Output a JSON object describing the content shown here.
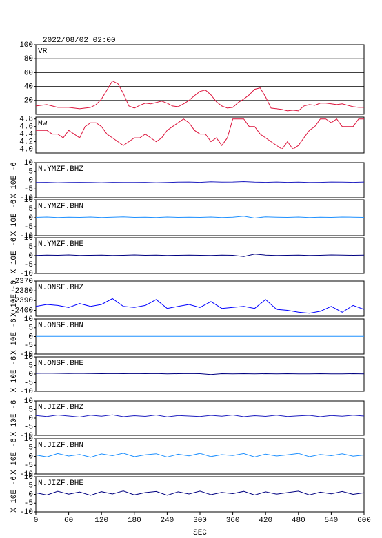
{
  "chart_data": [
    {
      "type": "line",
      "title": "2022/08/02 02:00",
      "xlim": [
        0,
        600
      ],
      "ylim": [
        0,
        100
      ],
      "yticks": [
        20,
        40,
        60,
        80,
        100
      ],
      "grid": true,
      "x": [
        0,
        10,
        20,
        30,
        40,
        50,
        60,
        70,
        80,
        90,
        100,
        110,
        120,
        130,
        140,
        150,
        160,
        170,
        180,
        190,
        200,
        210,
        220,
        230,
        240,
        250,
        260,
        270,
        280,
        290,
        300,
        310,
        320,
        330,
        340,
        350,
        360,
        370,
        380,
        390,
        400,
        410,
        420,
        430,
        440,
        450,
        460,
        470,
        480,
        490,
        500,
        510,
        520,
        530,
        540,
        550,
        560,
        570,
        580,
        590,
        600
      ],
      "series": [
        {
          "name": "VR",
          "color": "#dc143c",
          "values": [
            12,
            13,
            14,
            12,
            10,
            10,
            10,
            9,
            8,
            9,
            10,
            14,
            22,
            35,
            48,
            44,
            30,
            12,
            9,
            13,
            16,
            15,
            17,
            19,
            16,
            12,
            11,
            15,
            20,
            27,
            33,
            35,
            28,
            18,
            12,
            9,
            10,
            17,
            22,
            28,
            36,
            38,
            25,
            9,
            8,
            7,
            5,
            6,
            5,
            12,
            14,
            13,
            16,
            16,
            15,
            14,
            15,
            13,
            11,
            10,
            10
          ]
        }
      ]
    },
    {
      "type": "line",
      "xlim": [
        0,
        600
      ],
      "ylim": [
        3.9,
        4.85
      ],
      "yticks": [
        {
          "value": 4,
          "label": "4.0"
        },
        4.2,
        4.4,
        4.6,
        4.8
      ],
      "grid": false,
      "x": [
        0,
        10,
        20,
        30,
        40,
        50,
        60,
        70,
        80,
        90,
        100,
        110,
        120,
        130,
        140,
        150,
        160,
        170,
        180,
        190,
        200,
        210,
        220,
        230,
        240,
        250,
        260,
        270,
        280,
        290,
        300,
        310,
        320,
        330,
        340,
        350,
        360,
        370,
        380,
        390,
        400,
        410,
        420,
        430,
        440,
        450,
        460,
        470,
        480,
        490,
        500,
        510,
        520,
        530,
        540,
        550,
        560,
        570,
        580,
        590,
        600
      ],
      "series": [
        {
          "name": "Mw",
          "color": "#dc143c",
          "values": [
            4.5,
            4.5,
            4.5,
            4.4,
            4.4,
            4.3,
            4.5,
            4.4,
            4.3,
            4.6,
            4.7,
            4.7,
            4.6,
            4.4,
            4.3,
            4.2,
            4.1,
            4.2,
            4.3,
            4.3,
            4.4,
            4.3,
            4.2,
            4.3,
            4.5,
            4.6,
            4.7,
            4.8,
            4.7,
            4.5,
            4.4,
            4.4,
            4.2,
            4.3,
            4.1,
            4.3,
            4.8,
            4.8,
            4.8,
            4.6,
            4.6,
            4.4,
            4.3,
            4.2,
            4.1,
            4.0,
            4.2,
            4.0,
            4.1,
            4.3,
            4.5,
            4.6,
            4.8,
            4.8,
            4.7,
            4.8,
            4.6,
            4.6,
            4.6,
            4.8,
            4.8
          ]
        }
      ]
    },
    {
      "type": "line",
      "y_label": "X 10E -6",
      "xlim": [
        0,
        600
      ],
      "ylim": [
        -10,
        10
      ],
      "yticks": [
        -10,
        -5,
        0,
        5,
        10
      ],
      "grid": false,
      "x": [
        0,
        20,
        40,
        60,
        80,
        100,
        120,
        140,
        160,
        180,
        200,
        220,
        240,
        260,
        280,
        300,
        320,
        340,
        360,
        380,
        400,
        420,
        440,
        460,
        480,
        500,
        520,
        540,
        560,
        580,
        600
      ],
      "series": [
        {
          "name": "N.YMZF.BHZ",
          "color": "#2020c0",
          "values": [
            -1.3,
            -1.2,
            -1.4,
            -1.3,
            -1.2,
            -1.3,
            -1.4,
            -1.2,
            -1.3,
            -1.3,
            -1.2,
            -1.4,
            -1.3,
            -1.1,
            -1.0,
            -1.2,
            -0.9,
            -1.1,
            -1.0,
            -0.8,
            -1.1,
            -1.2,
            -1.0,
            -1.2,
            -1.1,
            -1.3,
            -1.2,
            -1.0,
            -1.1,
            -1.2,
            -1.0
          ]
        }
      ]
    },
    {
      "type": "line",
      "y_label": "X 10E -6",
      "xlim": [
        0,
        600
      ],
      "ylim": [
        -10,
        10
      ],
      "yticks": [
        -10,
        -5,
        0,
        5,
        10
      ],
      "grid": false,
      "x": [
        0,
        20,
        40,
        60,
        80,
        100,
        120,
        140,
        160,
        180,
        200,
        220,
        240,
        260,
        280,
        300,
        320,
        340,
        360,
        380,
        400,
        420,
        440,
        460,
        480,
        500,
        520,
        540,
        560,
        580,
        600
      ],
      "series": [
        {
          "name": "N.YMZF.BHN",
          "color": "#1e90ff",
          "values": [
            0.2,
            0.4,
            0.1,
            0.3,
            0.2,
            0.4,
            0.1,
            0.3,
            0.5,
            0.2,
            0.3,
            0.1,
            0.4,
            0.2,
            0.3,
            0.2,
            0.4,
            0.1,
            0.3,
            0.9,
            -0.2,
            0.5,
            0.3,
            0.2,
            0.4,
            0.1,
            0.3,
            0.2,
            0.4,
            0.3,
            0.2
          ]
        }
      ]
    },
    {
      "type": "line",
      "y_label": "X 10E -6",
      "xlim": [
        0,
        600
      ],
      "ylim": [
        -10,
        10
      ],
      "yticks": [
        -10,
        -5,
        0,
        5,
        10
      ],
      "grid": false,
      "x": [
        0,
        20,
        40,
        60,
        80,
        100,
        120,
        140,
        160,
        180,
        200,
        220,
        240,
        260,
        280,
        300,
        320,
        340,
        360,
        380,
        400,
        420,
        440,
        460,
        480,
        500,
        520,
        540,
        560,
        580,
        600
      ],
      "series": [
        {
          "name": "N.YMZF.BHE",
          "color": "#000080",
          "values": [
            0.1,
            0.3,
            0.2,
            0.4,
            0.1,
            0.2,
            0.3,
            0.1,
            0.2,
            0.4,
            0.2,
            0.3,
            0.1,
            0.2,
            0.3,
            0.2,
            0.1,
            0.3,
            0.2,
            -0.5,
            0.9,
            0.3,
            0.1,
            0.2,
            0.3,
            0.1,
            0.2,
            0.4,
            0.3,
            0.2,
            0.3
          ]
        }
      ]
    },
    {
      "type": "line",
      "y_label": "X 10E -6",
      "xlim": [
        0,
        600
      ],
      "ylim": [
        -2406,
        -2370
      ],
      "yticks": [
        -2400,
        -2390,
        -2380,
        -2370
      ],
      "grid": false,
      "x": [
        0,
        20,
        40,
        60,
        80,
        100,
        120,
        140,
        160,
        180,
        200,
        220,
        240,
        260,
        280,
        300,
        320,
        340,
        360,
        380,
        400,
        420,
        440,
        460,
        480,
        500,
        520,
        540,
        560,
        580,
        600
      ],
      "series": [
        {
          "name": "N.ONSF.BHZ",
          "color": "#0000ff",
          "values": [
            -2396,
            -2394,
            -2395,
            -2397,
            -2393,
            -2396,
            -2394,
            -2388,
            -2396,
            -2397,
            -2395,
            -2389,
            -2398,
            -2396,
            -2394,
            -2397,
            -2391,
            -2398,
            -2397,
            -2396,
            -2398,
            -2389,
            -2399,
            -2400,
            -2402,
            -2403,
            -2401,
            -2396,
            -2402,
            -2395,
            -2399
          ]
        }
      ]
    },
    {
      "type": "line",
      "y_label": "X 10E -6",
      "xlim": [
        0,
        600
      ],
      "ylim": [
        -10,
        10
      ],
      "yticks": [
        -10,
        -5,
        0,
        5,
        10
      ],
      "grid": false,
      "x": [
        0,
        20,
        40,
        60,
        80,
        100,
        120,
        140,
        160,
        180,
        200,
        220,
        240,
        260,
        280,
        300,
        320,
        340,
        360,
        380,
        400,
        420,
        440,
        460,
        480,
        500,
        520,
        540,
        560,
        580,
        600
      ],
      "series": [
        {
          "name": "N.ONSF.BHN",
          "color": "#1e90ff",
          "values": [
            0.1,
            0.1,
            0.1,
            0.1,
            0.1,
            0.1,
            0.1,
            0.1,
            0.1,
            0.1,
            0.1,
            0.1,
            0.1,
            0.1,
            0.1,
            0.1,
            0.1,
            0.1,
            0.1,
            0.1,
            0.1,
            0.1,
            0.1,
            0.1,
            0.1,
            0.1,
            0.1,
            0.1,
            0.1,
            0.1,
            0.1
          ]
        }
      ]
    },
    {
      "type": "line",
      "y_label": "X 10E -6",
      "xlim": [
        0,
        600
      ],
      "ylim": [
        -10,
        10
      ],
      "yticks": [
        -10,
        -5,
        0,
        5,
        10
      ],
      "grid": false,
      "x": [
        0,
        20,
        40,
        60,
        80,
        100,
        120,
        140,
        160,
        180,
        200,
        220,
        240,
        260,
        280,
        300,
        320,
        340,
        360,
        380,
        400,
        420,
        440,
        460,
        480,
        500,
        520,
        540,
        560,
        580,
        600
      ],
      "series": [
        {
          "name": "N.ONSF.BHE",
          "color": "#000080",
          "values": [
            0.4,
            0.5,
            0.4,
            0.3,
            0.4,
            0.3,
            0.2,
            0.3,
            0.2,
            0.3,
            0.2,
            0.3,
            0.1,
            0.2,
            0.3,
            0.2,
            -0.3,
            0.2,
            0.1,
            0.2,
            0.1,
            0.2,
            0.1,
            0.2,
            0.1,
            0.1,
            0.2,
            0.1,
            0.1,
            0.2,
            0.1
          ]
        }
      ]
    },
    {
      "type": "line",
      "y_label": "X 10E -6",
      "xlim": [
        0,
        600
      ],
      "ylim": [
        -10,
        10
      ],
      "yticks": [
        -10,
        -5,
        0,
        5,
        10
      ],
      "grid": false,
      "x": [
        0,
        20,
        40,
        60,
        80,
        100,
        120,
        140,
        160,
        180,
        200,
        220,
        240,
        260,
        280,
        300,
        320,
        340,
        360,
        380,
        400,
        420,
        440,
        460,
        480,
        500,
        520,
        540,
        560,
        580,
        600
      ],
      "series": [
        {
          "name": "N.JIZF.BHZ",
          "color": "#2020c0",
          "values": [
            1.5,
            0.9,
            1.8,
            1.2,
            0.6,
            1.7,
            1.1,
            1.9,
            0.8,
            1.4,
            1.0,
            1.8,
            0.7,
            1.5,
            1.2,
            0.9,
            1.6,
            1.1,
            1.8,
            0.8,
            1.4,
            1.0,
            1.7,
            0.9,
            1.3,
            1.6,
            0.8,
            1.5,
            1.1,
            1.7,
            1.2
          ]
        }
      ]
    },
    {
      "type": "line",
      "y_label": "X 10E -6",
      "xlim": [
        0,
        600
      ],
      "ylim": [
        -10,
        10
      ],
      "yticks": [
        -10,
        -5,
        0,
        5,
        10
      ],
      "grid": false,
      "x": [
        0,
        20,
        40,
        60,
        80,
        100,
        120,
        140,
        160,
        180,
        200,
        220,
        240,
        260,
        280,
        300,
        320,
        340,
        360,
        380,
        400,
        420,
        440,
        460,
        480,
        500,
        520,
        540,
        560,
        580,
        600
      ],
      "series": [
        {
          "name": "N.JIZF.BHN",
          "color": "#1e90ff",
          "values": [
            0.8,
            -0.3,
            1.6,
            0.2,
            1.1,
            -0.5,
            1.4,
            0.4,
            1.8,
            -0.2,
            0.9,
            1.5,
            -0.4,
            1.2,
            0.3,
            1.7,
            -0.1,
            1.0,
            0.5,
            1.6,
            -0.3,
            1.3,
            0.2,
            0.9,
            1.7,
            -0.2,
            1.1,
            0.4,
            1.5,
            0.1,
            0.8
          ]
        }
      ]
    },
    {
      "type": "line",
      "y_label": "X 10E -6",
      "x_label": "SEC",
      "xlim": [
        0,
        600
      ],
      "xticks": [
        0,
        60,
        120,
        180,
        240,
        300,
        360,
        420,
        480,
        540,
        600
      ],
      "ylim": [
        -10,
        10
      ],
      "yticks": [
        -10,
        -5,
        0,
        5,
        10
      ],
      "grid": false,
      "x": [
        0,
        20,
        40,
        60,
        80,
        100,
        120,
        140,
        160,
        180,
        200,
        220,
        240,
        260,
        280,
        300,
        320,
        340,
        360,
        380,
        400,
        420,
        440,
        460,
        480,
        500,
        520,
        540,
        560,
        580,
        600
      ],
      "series": [
        {
          "name": "N.JIZF.BHE",
          "color": "#000080",
          "values": [
            0.9,
            -0.4,
            1.7,
            0.1,
            1.3,
            -0.6,
            1.5,
            0.2,
            1.9,
            -0.3,
            1.0,
            1.6,
            -0.5,
            1.4,
            0.2,
            1.8,
            -0.2,
            1.1,
            0.4,
            1.7,
            -0.4,
            1.4,
            0.1,
            1.0,
            1.8,
            -0.3,
            1.2,
            0.3,
            1.6,
            0.0,
            0.9
          ]
        }
      ]
    }
  ]
}
